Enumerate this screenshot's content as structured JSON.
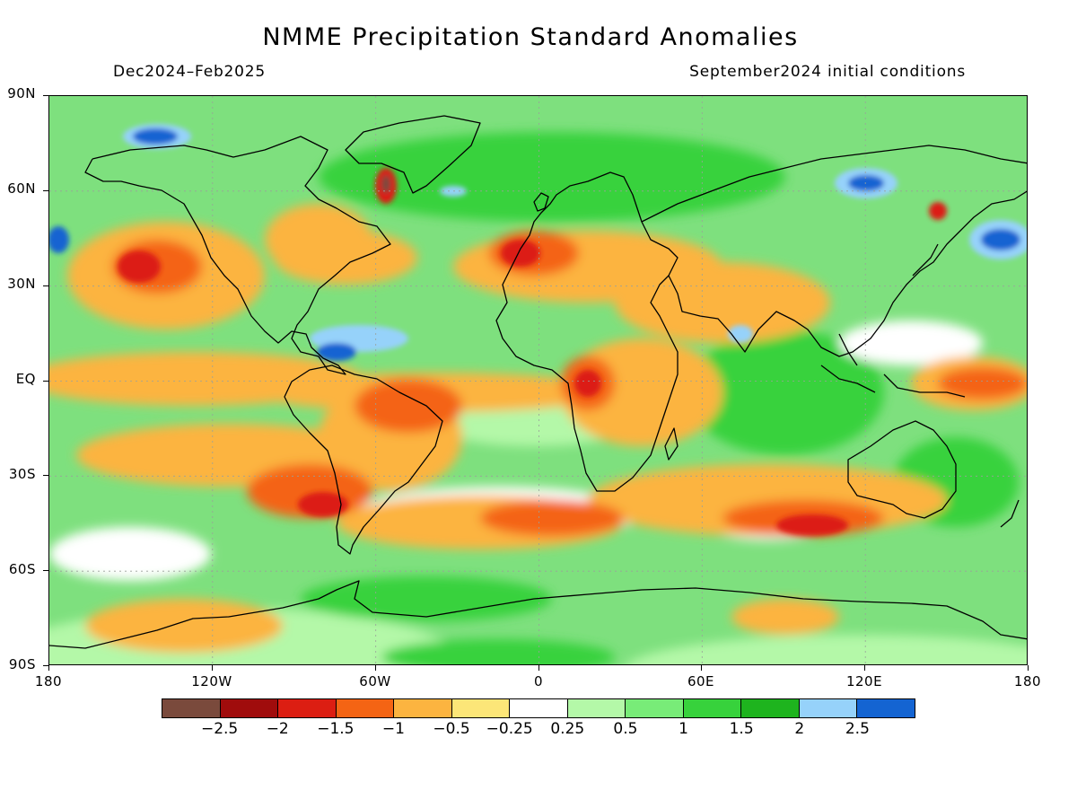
{
  "title": "NMME Precipitation Standard Anomalies",
  "period": "Dec2024–Feb2025",
  "initial_conditions": "September2024 initial conditions",
  "lat_labels": [
    "90N",
    "60N",
    "30N",
    "EQ",
    "30S",
    "60S",
    "90S"
  ],
  "lon_labels": [
    "180",
    "120W",
    "60W",
    "0",
    "60E",
    "120E",
    "180"
  ],
  "colorbar": {
    "colors": [
      "#7a4a3c",
      "#a00c0c",
      "#dc1e12",
      "#f46414",
      "#fcb440",
      "#fce678",
      "#ffffff",
      "#b4f8a8",
      "#78ec78",
      "#37d23c",
      "#1eb41e",
      "#96d2fa",
      "#1464d2"
    ],
    "labels": [
      "−2.5",
      "−2",
      "−1.5",
      "−1",
      "−0.5",
      "−0.25",
      "0.25",
      "0.5",
      "1",
      "1.5",
      "2",
      "2.5"
    ]
  }
}
